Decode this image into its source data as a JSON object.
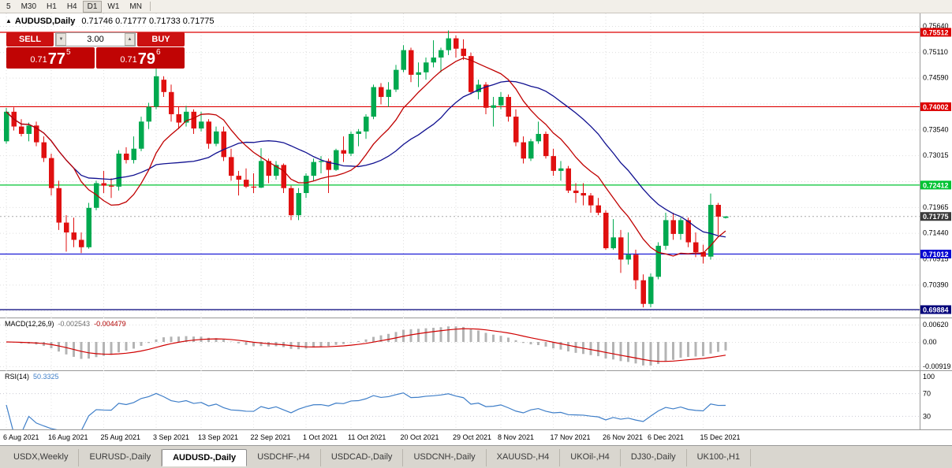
{
  "toolbar": {
    "periods": [
      "5",
      "M30",
      "H1",
      "H4",
      "D1",
      "W1",
      "MN"
    ],
    "active_period": "D1"
  },
  "chart_header": {
    "collapse_icon": "▲",
    "symbol": "AUDUSD,Daily",
    "ohlc_text": "0.71746 0.71777 0.71733 0.71775"
  },
  "trade_panel": {
    "sell_label": "SELL",
    "buy_label": "BUY",
    "lot_size": "3.00",
    "spin_down_icon": "▼",
    "spin_up_icon": "▲",
    "sell_price": {
      "base": "0.71",
      "big": "77",
      "sup": "5"
    },
    "buy_price": {
      "base": "0.71",
      "big": "79",
      "sup": "6"
    }
  },
  "chart_data": {
    "type": "candlestick",
    "symbol": "AUDUSD",
    "timeframe": "Daily",
    "candles": [
      [
        0.733,
        0.7398,
        0.7325,
        0.739
      ],
      [
        0.739,
        0.7399,
        0.7352,
        0.736
      ],
      [
        0.736,
        0.7375,
        0.734,
        0.7345
      ],
      [
        0.7345,
        0.7368,
        0.733,
        0.7362
      ],
      [
        0.7362,
        0.737,
        0.732,
        0.7328
      ],
      [
        0.7328,
        0.734,
        0.7288,
        0.7296
      ],
      [
        0.7296,
        0.7305,
        0.722,
        0.7235
      ],
      [
        0.7235,
        0.725,
        0.715,
        0.7165
      ],
      [
        0.7165,
        0.718,
        0.7106,
        0.7145
      ],
      [
        0.7145,
        0.7175,
        0.7115,
        0.713
      ],
      [
        0.713,
        0.7145,
        0.7103,
        0.7115
      ],
      [
        0.7115,
        0.7205,
        0.7112,
        0.7195
      ],
      [
        0.7195,
        0.725,
        0.719,
        0.7245
      ],
      [
        0.7245,
        0.727,
        0.7225,
        0.724
      ],
      [
        0.724,
        0.7255,
        0.7215,
        0.7238
      ],
      [
        0.7238,
        0.7312,
        0.723,
        0.7305
      ],
      [
        0.7305,
        0.7318,
        0.7285,
        0.7292
      ],
      [
        0.7292,
        0.734,
        0.7285,
        0.7315
      ],
      [
        0.7315,
        0.738,
        0.731,
        0.737
      ],
      [
        0.737,
        0.7408,
        0.7355,
        0.74
      ],
      [
        0.74,
        0.7478,
        0.7395,
        0.7462
      ],
      [
        0.7455,
        0.7462,
        0.742,
        0.743
      ],
      [
        0.743,
        0.7445,
        0.737,
        0.7385
      ],
      [
        0.7385,
        0.74,
        0.7355,
        0.7368
      ],
      [
        0.7368,
        0.7402,
        0.736,
        0.739
      ],
      [
        0.739,
        0.7395,
        0.7345,
        0.7356
      ],
      [
        0.7356,
        0.739,
        0.735,
        0.737
      ],
      [
        0.737,
        0.7375,
        0.7315,
        0.7325
      ],
      [
        0.7325,
        0.736,
        0.732,
        0.735
      ],
      [
        0.735,
        0.736,
        0.729,
        0.7298
      ],
      [
        0.7298,
        0.7315,
        0.725,
        0.726
      ],
      [
        0.726,
        0.727,
        0.722,
        0.7252
      ],
      [
        0.7252,
        0.7275,
        0.7235,
        0.7238
      ],
      [
        0.7238,
        0.7265,
        0.7225,
        0.7236
      ],
      [
        0.7236,
        0.7316,
        0.7235,
        0.729
      ],
      [
        0.729,
        0.7295,
        0.7245,
        0.726
      ],
      [
        0.726,
        0.729,
        0.7252,
        0.7282
      ],
      [
        0.7282,
        0.7285,
        0.7225,
        0.7235
      ],
      [
        0.7235,
        0.724,
        0.717,
        0.718
      ],
      [
        0.718,
        0.7235,
        0.717,
        0.7225
      ],
      [
        0.7225,
        0.7265,
        0.7215,
        0.726
      ],
      [
        0.726,
        0.7295,
        0.725,
        0.7288
      ],
      [
        0.7288,
        0.73,
        0.7265,
        0.729
      ],
      [
        0.729,
        0.7295,
        0.7225,
        0.7272
      ],
      [
        0.7272,
        0.7315,
        0.727,
        0.7312
      ],
      [
        0.7312,
        0.734,
        0.7288,
        0.7305
      ],
      [
        0.7305,
        0.735,
        0.73,
        0.7345
      ],
      [
        0.7345,
        0.7355,
        0.732,
        0.735
      ],
      [
        0.735,
        0.7385,
        0.7335,
        0.738
      ],
      [
        0.738,
        0.7445,
        0.7375,
        0.744
      ],
      [
        0.744,
        0.7448,
        0.7405,
        0.742
      ],
      [
        0.742,
        0.745,
        0.74,
        0.7435
      ],
      [
        0.7435,
        0.7485,
        0.743,
        0.7475
      ],
      [
        0.7475,
        0.7525,
        0.747,
        0.7515
      ],
      [
        0.7515,
        0.752,
        0.745,
        0.7465
      ],
      [
        0.7465,
        0.749,
        0.744,
        0.747
      ],
      [
        0.747,
        0.75,
        0.7455,
        0.749
      ],
      [
        0.749,
        0.7535,
        0.748,
        0.75
      ],
      [
        0.75,
        0.752,
        0.747,
        0.7515
      ],
      [
        0.7515,
        0.7555,
        0.7505,
        0.7539
      ],
      [
        0.7539,
        0.7545,
        0.75,
        0.7518
      ],
      [
        0.7518,
        0.7537,
        0.7495,
        0.7503
      ],
      [
        0.7503,
        0.751,
        0.7425,
        0.743
      ],
      [
        0.743,
        0.7455,
        0.7415,
        0.7445
      ],
      [
        0.7445,
        0.745,
        0.7385,
        0.7398
      ],
      [
        0.7398,
        0.742,
        0.736,
        0.7403
      ],
      [
        0.7403,
        0.743,
        0.7395,
        0.742
      ],
      [
        0.742,
        0.7425,
        0.737,
        0.738
      ],
      [
        0.738,
        0.7395,
        0.732,
        0.7328
      ],
      [
        0.7328,
        0.734,
        0.7285,
        0.7295
      ],
      [
        0.7295,
        0.7335,
        0.729,
        0.733
      ],
      [
        0.733,
        0.737,
        0.7325,
        0.7345
      ],
      [
        0.7345,
        0.735,
        0.7295,
        0.73
      ],
      [
        0.73,
        0.7315,
        0.726,
        0.727
      ],
      [
        0.727,
        0.729,
        0.725,
        0.7275
      ],
      [
        0.7275,
        0.728,
        0.7225,
        0.723
      ],
      [
        0.723,
        0.7245,
        0.7205,
        0.7225
      ],
      [
        0.7225,
        0.7245,
        0.72,
        0.722
      ],
      [
        0.722,
        0.7225,
        0.7185,
        0.72
      ],
      [
        0.72,
        0.7215,
        0.718,
        0.7185
      ],
      [
        0.7185,
        0.719,
        0.711,
        0.7113
      ],
      [
        0.7113,
        0.7172,
        0.711,
        0.7135
      ],
      [
        0.7135,
        0.715,
        0.7063,
        0.709
      ],
      [
        0.709,
        0.7145,
        0.708,
        0.71
      ],
      [
        0.71,
        0.711,
        0.703,
        0.7048
      ],
      [
        0.7048,
        0.706,
        0.6993,
        0.7
      ],
      [
        0.7,
        0.7062,
        0.6993,
        0.7055
      ],
      [
        0.7055,
        0.7125,
        0.705,
        0.7118
      ],
      [
        0.7118,
        0.7185,
        0.711,
        0.717
      ],
      [
        0.717,
        0.7185,
        0.713,
        0.7142
      ],
      [
        0.7142,
        0.7175,
        0.713,
        0.717
      ],
      [
        0.717,
        0.7175,
        0.7115,
        0.7125
      ],
      [
        0.7125,
        0.7145,
        0.7095,
        0.7105
      ],
      [
        0.7105,
        0.712,
        0.7082,
        0.7096
      ],
      [
        0.7096,
        0.7224,
        0.709,
        0.7201
      ],
      [
        0.7201,
        0.7205,
        0.714,
        0.7177
      ],
      [
        0.71746,
        0.71777,
        0.71733,
        0.71775
      ]
    ],
    "date_labels": [
      {
        "i": 0,
        "label": "6 Aug 2021"
      },
      {
        "i": 6,
        "label": "16 Aug 2021"
      },
      {
        "i": 13,
        "label": "25 Aug 2021"
      },
      {
        "i": 20,
        "label": "3 Sep 2021"
      },
      {
        "i": 26,
        "label": "13 Sep 2021"
      },
      {
        "i": 33,
        "label": "22 Sep 2021"
      },
      {
        "i": 40,
        "label": "1 Oct 2021"
      },
      {
        "i": 46,
        "label": "11 Oct 2021"
      },
      {
        "i": 53,
        "label": "20 Oct 2021"
      },
      {
        "i": 60,
        "label": "29 Oct 2021"
      },
      {
        "i": 66,
        "label": "8 Nov 2021"
      },
      {
        "i": 73,
        "label": "17 Nov 2021"
      },
      {
        "i": 80,
        "label": "26 Nov 2021"
      },
      {
        "i": 86,
        "label": "6 Dec 2021"
      },
      {
        "i": 93,
        "label": "15 Dec 2021"
      }
    ],
    "price_axis": {
      "labels": [
        "0.75640",
        "0.75110",
        "0.74590",
        "0.73540",
        "0.73015",
        "0.71965",
        "0.71440",
        "0.70915",
        "0.70390"
      ],
      "grid_values": [
        0.7564,
        0.7511,
        0.7459,
        0.74065,
        0.7354,
        0.73015,
        0.7249,
        0.71965,
        0.7144,
        0.70915,
        0.7039,
        0.69865
      ]
    },
    "levels": [
      {
        "value": 0.75512,
        "label": "0.75512",
        "color": "#dd0000"
      },
      {
        "value": 0.74002,
        "label": "0.74002",
        "color": "#dd0000"
      },
      {
        "value": 0.72412,
        "label": "0.72412",
        "color": "#00c332"
      },
      {
        "value": 0.71012,
        "label": "0.71012",
        "color": "#0a0ad2"
      },
      {
        "value": 0.69884,
        "label": "0.69884",
        "color": "#00007a"
      }
    ],
    "current_price": {
      "value": 0.71775,
      "label": "0.71775",
      "badge_color": "#3a3a3a"
    },
    "colors": {
      "up": "#00a94f",
      "down": "#e01010",
      "ma_fast": "#c00000",
      "ma_slow": "#101090",
      "grid": "#dedede"
    },
    "ma_fast_period": 10,
    "ma_slow_period": 21,
    "indicators": {
      "macd": {
        "label": "MACD(12,26,9)",
        "values": [
          "-0.002543",
          "-0.004479"
        ],
        "axis_labels": [
          "0.00620",
          "0.00",
          "-0.00919"
        ],
        "fast": 12,
        "slow": 26,
        "signal": 9,
        "histogram_color": "#b4b4b4",
        "signal_color": "#d00000"
      },
      "rsi": {
        "label": "RSI(14)",
        "value": "50.3325",
        "period": 14,
        "axis_labels": [
          "100",
          "70",
          "30"
        ],
        "levels": [
          70,
          30
        ],
        "line_color": "#3e7ec8"
      }
    }
  },
  "tabs": {
    "items": [
      "USDX,Weekly",
      "EURUSD-,Daily",
      "AUDUSD-,Daily",
      "USDCHF-,H4",
      "USDCAD-,Daily",
      "USDCNH-,Daily",
      "XAUUSD-,H4",
      "UKOil-,H4",
      "DJ30-,Daily",
      "UK100-,H1"
    ],
    "active": "AUDUSD-,Daily"
  }
}
